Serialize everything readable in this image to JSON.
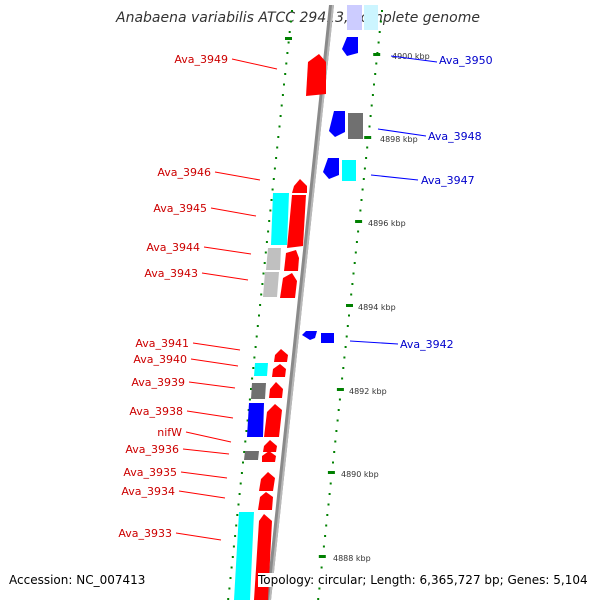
{
  "title": "Anabaena variabilis ATCC 29413, complete genome",
  "accession": "Accession: NC_007413",
  "summary": "Topology: circular; Length: 6,365,727 bp; Genes: 5,104",
  "colors": {
    "forward_gene": "#ff0000",
    "reverse_gene": "#0000ff",
    "forward_rna": "#00ffff",
    "pale_blue": "#ccccff",
    "pale_cyan": "#ccf5ff",
    "gray_feature": "#808080",
    "light_gray_feature": "#c0c0c0",
    "tick": "#008000",
    "forward_label": "#cc0000",
    "reverse_label": "#0000cc",
    "backbone": "#888888"
  },
  "scale": {
    "labels": [
      "4900 kbp",
      "4898 kbp",
      "4896 kbp",
      "4894 kbp",
      "4892 kbp",
      "4890 kbp",
      "4888 kbp"
    ]
  },
  "forward_labels": [
    "Ava_3949",
    "Ava_3946",
    "Ava_3945",
    "Ava_3944",
    "Ava_3943",
    "Ava_3941",
    "Ava_3940",
    "Ava_3939",
    "Ava_3938",
    "nifW",
    "Ava_3936",
    "Ava_3935",
    "Ava_3934",
    "Ava_3933"
  ],
  "reverse_labels": [
    "Ava_3950",
    "Ava_3948",
    "Ava_3947",
    "Ava_3942"
  ]
}
